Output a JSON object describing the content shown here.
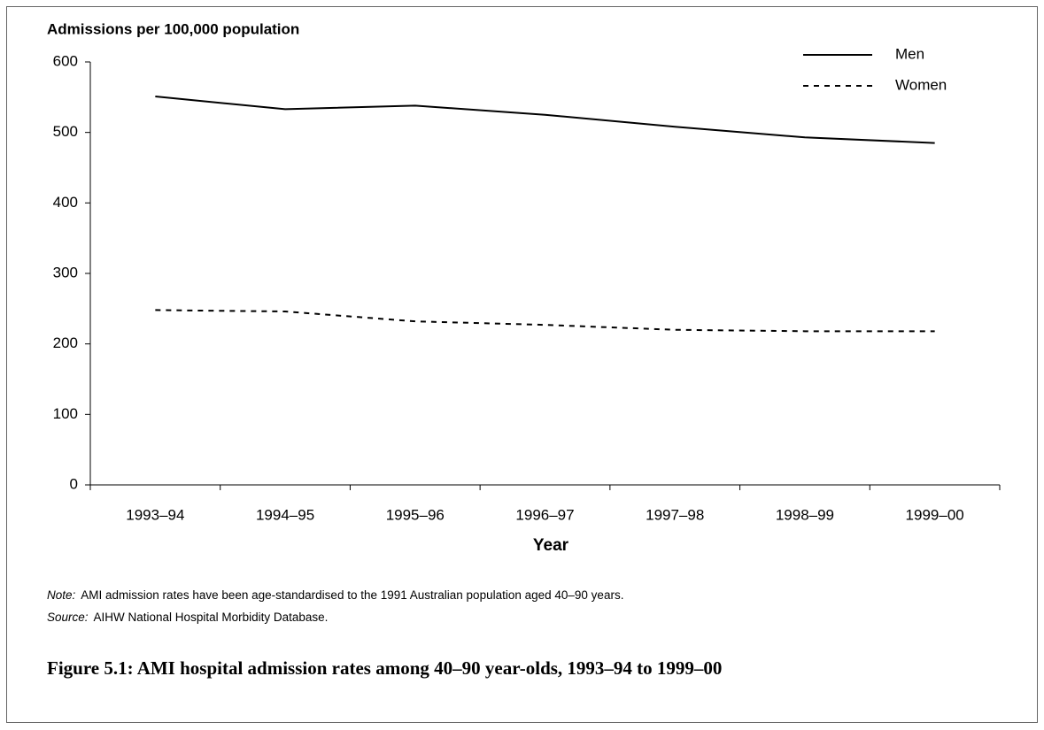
{
  "chart_data": {
    "type": "line",
    "title": "Figure 5.1: AMI hospital admission rates among 40–90 year-olds, 1993–94 to 1999–00",
    "y_label": "Admissions per 100,000 population",
    "x_label": "Year",
    "note_label": "Note:",
    "note": "AMI admission rates have been age-standardised to the 1991 Australian population aged 40–90 years.",
    "source_label": "Source:",
    "source": "AIHW National Hospital Morbidity Database.",
    "categories": [
      "1993–94",
      "1994–95",
      "1995–96",
      "1996–97",
      "1997–98",
      "1998–99",
      "1999–00"
    ],
    "series": [
      {
        "name": "Men",
        "color": "#000000",
        "line_style": "solid",
        "values": [
          551,
          533,
          538,
          525,
          508,
          493,
          485
        ]
      },
      {
        "name": "Women",
        "color": "#000000",
        "line_style": "dashed",
        "values": [
          248,
          246,
          232,
          227,
          220,
          218,
          218
        ]
      }
    ],
    "ylim": [
      0,
      600
    ],
    "yticks": [
      0,
      100,
      200,
      300,
      400,
      500,
      600
    ],
    "grid": false,
    "legend": "upper right"
  }
}
